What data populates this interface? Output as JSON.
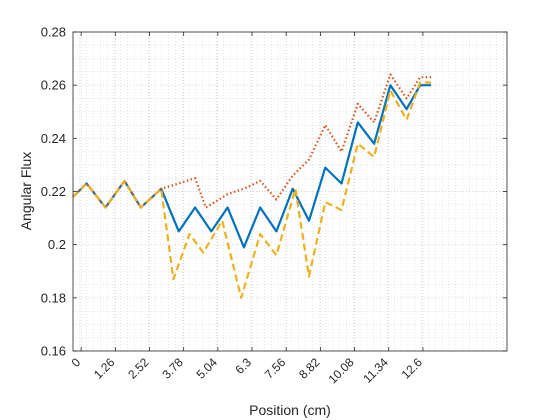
{
  "chart_data": {
    "type": "line",
    "title": "",
    "xlabel": "Position (cm)",
    "ylabel": "Angular Flux",
    "xlim": [
      -0.3,
      15.7
    ],
    "ylim": [
      0.16,
      0.28
    ],
    "xticks": [
      0,
      1.26,
      2.52,
      3.78,
      5.04,
      6.3,
      7.56,
      8.82,
      10.08,
      11.34,
      12.6
    ],
    "xtick_labels": [
      "0",
      "1.26",
      "2.52",
      "3.78",
      "5.04",
      "6.3",
      "7.56",
      "8.82",
      "10.08",
      "11.34",
      "12.6"
    ],
    "yticks": [
      0.16,
      0.18,
      0.2,
      0.22,
      0.24,
      0.26,
      0.28
    ],
    "ytick_labels": [
      "0.16",
      "0.18",
      "0.2",
      "0.22",
      "0.24",
      "0.26",
      "0.28"
    ],
    "grid": "major and minor, dotted",
    "series": [
      {
        "color": "#0072BD",
        "dash": "solid",
        "x": [
          -0.3,
          0.2,
          0.9,
          1.6,
          2.2,
          2.95,
          3.6,
          4.2,
          4.8,
          5.4,
          6.0,
          6.6,
          7.2,
          7.8,
          8.4,
          9.0,
          9.6,
          10.2,
          10.8,
          11.4,
          12.0,
          12.5,
          12.9
        ],
        "y": [
          0.218,
          0.223,
          0.214,
          0.224,
          0.214,
          0.221,
          0.205,
          0.214,
          0.205,
          0.214,
          0.199,
          0.214,
          0.205,
          0.221,
          0.209,
          0.229,
          0.223,
          0.246,
          0.238,
          0.26,
          0.251,
          0.26,
          0.26
        ]
      },
      {
        "color": "#D95319",
        "dash": "dotted",
        "x": [
          -0.3,
          0.2,
          0.9,
          1.6,
          2.2,
          2.95,
          3.6,
          4.2,
          4.6,
          5.4,
          6.0,
          6.6,
          7.2,
          7.8,
          8.4,
          9.0,
          9.6,
          10.2,
          10.8,
          11.4,
          12.0,
          12.5,
          12.9
        ],
        "y": [
          0.218,
          0.223,
          0.214,
          0.224,
          0.214,
          0.221,
          0.223,
          0.225,
          0.214,
          0.219,
          0.221,
          0.224,
          0.217,
          0.226,
          0.232,
          0.245,
          0.235,
          0.253,
          0.246,
          0.264,
          0.255,
          0.263,
          0.263
        ]
      },
      {
        "color": "#EDB120",
        "dash": "dashed",
        "x": [
          -0.3,
          0.2,
          0.9,
          1.6,
          2.2,
          2.95,
          3.4,
          4.0,
          4.5,
          5.2,
          5.9,
          6.6,
          7.2,
          7.9,
          8.4,
          9.0,
          9.6,
          10.2,
          10.8,
          11.4,
          12.0,
          12.5,
          12.9
        ],
        "y": [
          0.218,
          0.223,
          0.214,
          0.224,
          0.214,
          0.221,
          0.187,
          0.204,
          0.197,
          0.209,
          0.18,
          0.204,
          0.196,
          0.221,
          0.188,
          0.216,
          0.213,
          0.238,
          0.233,
          0.258,
          0.247,
          0.261,
          0.261
        ]
      }
    ]
  }
}
